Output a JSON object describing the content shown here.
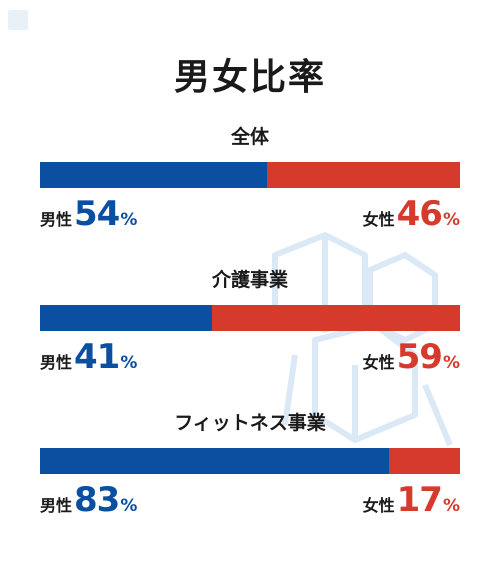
{
  "title": "男女比率",
  "colors": {
    "male": "#0b4fa0",
    "female": "#d63a2c"
  },
  "chart_data": [
    {
      "type": "bar",
      "title": "全体",
      "stacked": true,
      "orientation": "horizontal",
      "series": [
        {
          "name": "男性",
          "value": 54,
          "unit": "%"
        },
        {
          "name": "女性",
          "value": 46,
          "unit": "%"
        }
      ]
    },
    {
      "type": "bar",
      "title": "介護事業",
      "stacked": true,
      "orientation": "horizontal",
      "series": [
        {
          "name": "男性",
          "value": 41,
          "unit": "%"
        },
        {
          "name": "女性",
          "value": 59,
          "unit": "%"
        }
      ]
    },
    {
      "type": "bar",
      "title": "フィットネス事業",
      "stacked": true,
      "orientation": "horizontal",
      "series": [
        {
          "name": "男性",
          "value": 83,
          "unit": "%"
        },
        {
          "name": "女性",
          "value": 17,
          "unit": "%"
        }
      ]
    }
  ]
}
